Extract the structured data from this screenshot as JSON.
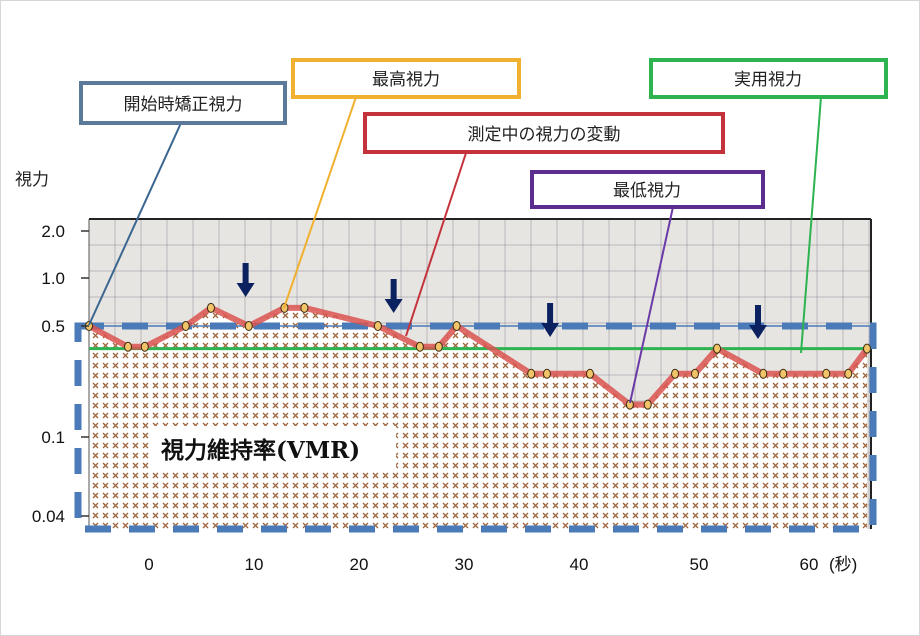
{
  "chart_data": {
    "type": "line",
    "ylabel": "視力",
    "xlabel_unit": "(秒)",
    "y_ticks": [
      "2.0",
      "1.0",
      "0.5",
      "0.1",
      "0.04"
    ],
    "y_tick_values": [
      2.0,
      1.0,
      0.5,
      0.1,
      0.04
    ],
    "x_ticks": [
      "0",
      "10",
      "20",
      "30",
      "40",
      "50",
      "60"
    ],
    "x_tick_values": [
      0,
      10,
      20,
      30,
      40,
      50,
      60
    ],
    "y_scale": "log",
    "grid": true,
    "series": [
      {
        "name": "測定中の視力の変動",
        "color": "#d9534f",
        "points": [
          [
            -5.7,
            0.5
          ],
          [
            -2,
            0.37
          ],
          [
            -0.4,
            0.37
          ],
          [
            3.5,
            0.5
          ],
          [
            5.9,
            0.65
          ],
          [
            9.5,
            0.5
          ],
          [
            12.9,
            0.65
          ],
          [
            14.8,
            0.65
          ],
          [
            21.8,
            0.5
          ],
          [
            25.8,
            0.37
          ],
          [
            27.6,
            0.37
          ],
          [
            29.3,
            0.5
          ],
          [
            36.4,
            0.25
          ],
          [
            37.9,
            0.25
          ],
          [
            42,
            0.25
          ],
          [
            45.8,
            0.16
          ],
          [
            47.5,
            0.16
          ],
          [
            50.1,
            0.25
          ],
          [
            52,
            0.25
          ],
          [
            54.1,
            0.36
          ],
          [
            58.5,
            0.25
          ],
          [
            60.4,
            0.25
          ],
          [
            64.5,
            0.25
          ],
          [
            66.6,
            0.25
          ],
          [
            68.3,
            0.36
          ]
        ]
      }
    ],
    "reference_lines": {
      "starting_acuity": 0.5,
      "functional_acuity": 0.36
    },
    "blink_arrows_seconds": [
      9.2,
      23.3,
      38.2,
      58
    ]
  },
  "annotations": {
    "start": {
      "label": "開始時矯正視力",
      "color": "#5b7a99"
    },
    "max": {
      "label": "最高視力",
      "color": "#f0b030"
    },
    "variation": {
      "label": "測定中の視力の変動",
      "color": "#c4323c"
    },
    "min": {
      "label": "最低視力",
      "color": "#5b2d8e"
    },
    "functional": {
      "label": "実用視力",
      "color": "#2db350"
    },
    "vmr": {
      "label": "視力維持率(VMR)"
    }
  },
  "colors": {
    "dashed_box": "#4a7ab8",
    "arrow": "#0b2160",
    "hatch": "#a0633a"
  }
}
